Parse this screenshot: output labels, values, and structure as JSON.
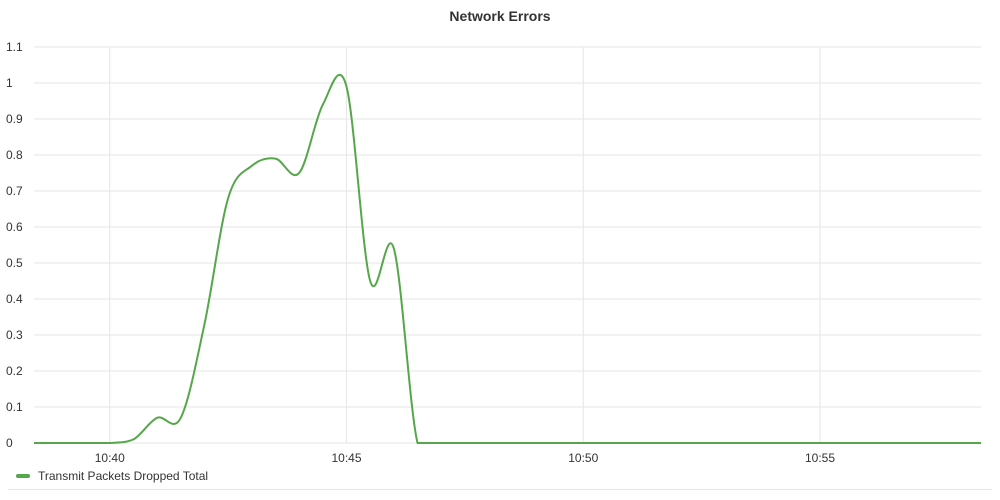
{
  "chart_data": {
    "type": "line",
    "title": "Network Errors",
    "xlabel": "",
    "ylabel": "",
    "x_tick_labels": [
      "10:40",
      "10:45",
      "10:50",
      "10:55"
    ],
    "x_tick_minutes": [
      40,
      45,
      50,
      55
    ],
    "xlim_minutes": [
      38.4,
      58.4
    ],
    "y_tick_labels": [
      "0",
      "0.1",
      "0.2",
      "0.3",
      "0.4",
      "0.5",
      "0.6",
      "0.7",
      "0.8",
      "0.9",
      "1",
      "1.1"
    ],
    "ylim": [
      0,
      1.1
    ],
    "grid": true,
    "legend_position": "bottom-left",
    "series": [
      {
        "name": "Transmit Packets Dropped Total",
        "color": "#56a64b",
        "x_minutes": [
          38.4,
          39.5,
          40.0,
          40.5,
          41.0,
          41.5,
          42.0,
          42.5,
          43.0,
          43.5,
          44.0,
          44.5,
          45.0,
          45.5,
          46.0,
          46.5,
          47.0,
          48.0,
          50.0,
          52.0,
          55.0,
          58.4
        ],
        "values": [
          0,
          0,
          0,
          0.01,
          0.07,
          0.07,
          0.33,
          0.68,
          0.77,
          0.79,
          0.75,
          0.94,
          0.99,
          0.45,
          0.54,
          0,
          0,
          0,
          0,
          0,
          0,
          0
        ]
      }
    ]
  }
}
